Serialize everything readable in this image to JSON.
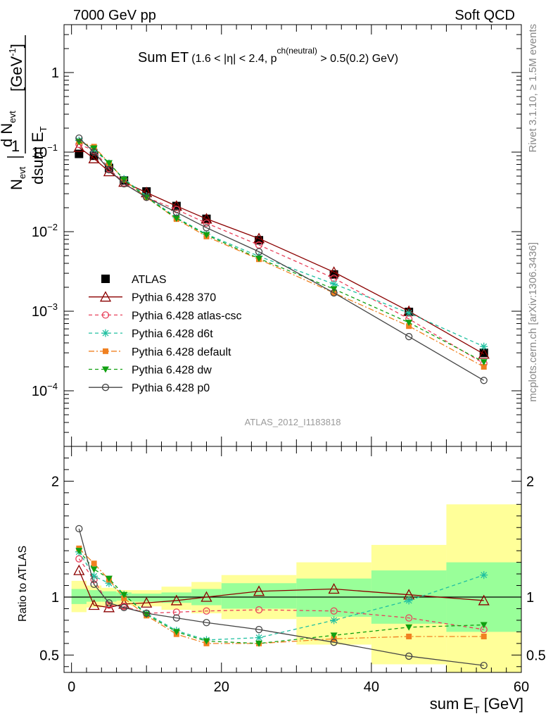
{
  "header": {
    "left": "7000 GeV pp",
    "right": "Soft QCD"
  },
  "side_labels": {
    "rivet": "Rivet 3.1.10, ≥ 1.5M events",
    "mcplots": "mcplots.cern.ch [arXiv:1306.3436]"
  },
  "chart_data": [
    {
      "type": "line",
      "panel": "main",
      "title": "Sum ET",
      "subtitle": "(1.6 < |η| < 2.4, p",
      "subtitle_sup": "ch(neutral)",
      "subtitle_end": " > 0.5(0.2) GeV)",
      "watermark": "ATLAS_2012_I1183818",
      "ylabel": "1/Nevt dNevt/dsum ET [GeV⁻¹]",
      "yscale": "log",
      "xlim": [
        -1,
        60
      ],
      "ylim": [
        2e-05,
        4
      ],
      "yticks": [
        {
          "value": 1,
          "label": "1"
        },
        {
          "value": 0.1,
          "label": "10",
          "sup": "−1"
        },
        {
          "value": 0.01,
          "label": "10",
          "sup": "−2"
        },
        {
          "value": 0.001,
          "label": "10",
          "sup": "−3"
        },
        {
          "value": 0.0001,
          "label": "10",
          "sup": "−4"
        }
      ],
      "legend_position": "left",
      "x": [
        1,
        3,
        5,
        7,
        10,
        14,
        18,
        25,
        35,
        45,
        55
      ],
      "series": [
        {
          "name": "ATLAS",
          "color": "#000000",
          "marker": "square",
          "line": "none",
          "values": [
            0.095,
            0.09,
            0.063,
            0.044,
            0.032,
            0.021,
            0.0145,
            0.0078,
            0.0029,
            0.00098,
            0.0003
          ]
        },
        {
          "name": "Pythia 6.428 370",
          "color": "#8b0000",
          "marker": "triangle-open",
          "line": "solid",
          "values": [
            0.115,
            0.083,
            0.057,
            0.042,
            0.031,
            0.021,
            0.0145,
            0.0082,
            0.0031,
            0.001,
            0.00029
          ]
        },
        {
          "name": "Pythia 6.428 atlas-csc",
          "color": "#e8405a",
          "marker": "circle-open",
          "line": "dashed",
          "values": [
            0.125,
            0.105,
            0.062,
            0.041,
            0.027,
            0.019,
            0.0128,
            0.0068,
            0.0026,
            0.0008,
            0.00022
          ]
        },
        {
          "name": "Pythia 6.428 d6t",
          "color": "#20c0a0",
          "marker": "star",
          "line": "dashed",
          "values": [
            0.14,
            0.108,
            0.072,
            0.046,
            0.028,
            0.015,
            0.0093,
            0.0049,
            0.0022,
            0.00095,
            0.00036
          ]
        },
        {
          "name": "Pythia 6.428 default",
          "color": "#f08020",
          "marker": "square-filled",
          "line": "dashdot",
          "values": [
            0.135,
            0.117,
            0.073,
            0.045,
            0.027,
            0.0144,
            0.0087,
            0.0045,
            0.0017,
            0.00065,
            0.0002
          ]
        },
        {
          "name": "Pythia 6.428 dw",
          "color": "#10a010",
          "marker": "triangle-down",
          "line": "dashed",
          "values": [
            0.135,
            0.112,
            0.073,
            0.045,
            0.027,
            0.0147,
            0.0091,
            0.0046,
            0.0019,
            0.00072,
            0.00023
          ]
        },
        {
          "name": "Pythia 6.428 p0",
          "color": "#444444",
          "marker": "circle-open",
          "line": "solid",
          "values": [
            0.15,
            0.1,
            0.06,
            0.04,
            0.027,
            0.0175,
            0.0112,
            0.0056,
            0.0017,
            0.00048,
            0.000135
          ]
        }
      ]
    },
    {
      "type": "line",
      "panel": "ratio",
      "ylabel": "Ratio to ATLAS",
      "xlabel": "sum E",
      "xlabel_sub": "T",
      "xlabel_unit": " [GeV]",
      "xlim": [
        -1,
        60
      ],
      "ylim": [
        0.35,
        2.3
      ],
      "xticks": [
        0,
        20,
        40,
        60
      ],
      "yticks": [
        0.5,
        1,
        2
      ],
      "bands": {
        "edges": [
          0,
          2,
          4,
          6,
          8,
          12,
          16,
          20,
          30,
          40,
          50,
          60
        ],
        "inner_color": "#99ff99",
        "outer_color": "#ffff99",
        "inner": [
          [
            0.94,
            1.07
          ],
          [
            0.96,
            1.06
          ],
          [
            0.96,
            1.05
          ],
          [
            0.97,
            1.04
          ],
          [
            0.96,
            1.03
          ],
          [
            0.95,
            1.04
          ],
          [
            0.93,
            1.07
          ],
          [
            0.9,
            1.12
          ],
          [
            0.83,
            1.16
          ],
          [
            0.77,
            1.23
          ],
          [
            0.7,
            1.3
          ]
        ],
        "outer": [
          [
            0.87,
            1.14
          ],
          [
            0.91,
            1.1
          ],
          [
            0.92,
            1.08
          ],
          [
            0.93,
            1.06
          ],
          [
            0.92,
            1.06
          ],
          [
            0.89,
            1.09
          ],
          [
            0.86,
            1.13
          ],
          [
            0.81,
            1.19
          ],
          [
            0.59,
            1.3
          ],
          [
            0.42,
            1.45
          ],
          [
            0.33,
            1.8
          ]
        ]
      },
      "reference": 1,
      "x": [
        1,
        3,
        5,
        7,
        10,
        14,
        18,
        25,
        35,
        45,
        55
      ],
      "series": [
        {
          "name": "Pythia 6.428 370",
          "values": [
            1.23,
            0.93,
            0.91,
            0.94,
            0.95,
            0.97,
            1.0,
            1.05,
            1.07,
            1.02,
            0.97
          ]
        },
        {
          "name": "Pythia 6.428 atlas-csc",
          "values": [
            1.33,
            1.15,
            0.93,
            0.92,
            0.86,
            0.87,
            0.88,
            0.89,
            0.88,
            0.82,
            0.72
          ]
        },
        {
          "name": "Pythia 6.428 d6t",
          "values": [
            1.39,
            1.18,
            1.12,
            1.02,
            0.86,
            0.71,
            0.63,
            0.65,
            0.8,
            0.97,
            1.19
          ]
        },
        {
          "name": "Pythia 6.428 default",
          "values": [
            1.42,
            1.29,
            1.15,
            0.99,
            0.84,
            0.68,
            0.6,
            0.6,
            0.64,
            0.66,
            0.66
          ]
        },
        {
          "name": "Pythia 6.428 dw",
          "values": [
            1.4,
            1.24,
            1.16,
            1.02,
            0.85,
            0.7,
            0.62,
            0.6,
            0.67,
            0.74,
            0.76
          ]
        },
        {
          "name": "Pythia 6.428 p0",
          "values": [
            1.59,
            1.11,
            0.95,
            0.91,
            0.86,
            0.82,
            0.78,
            0.72,
            0.61,
            0.49,
            0.41
          ]
        }
      ]
    }
  ]
}
